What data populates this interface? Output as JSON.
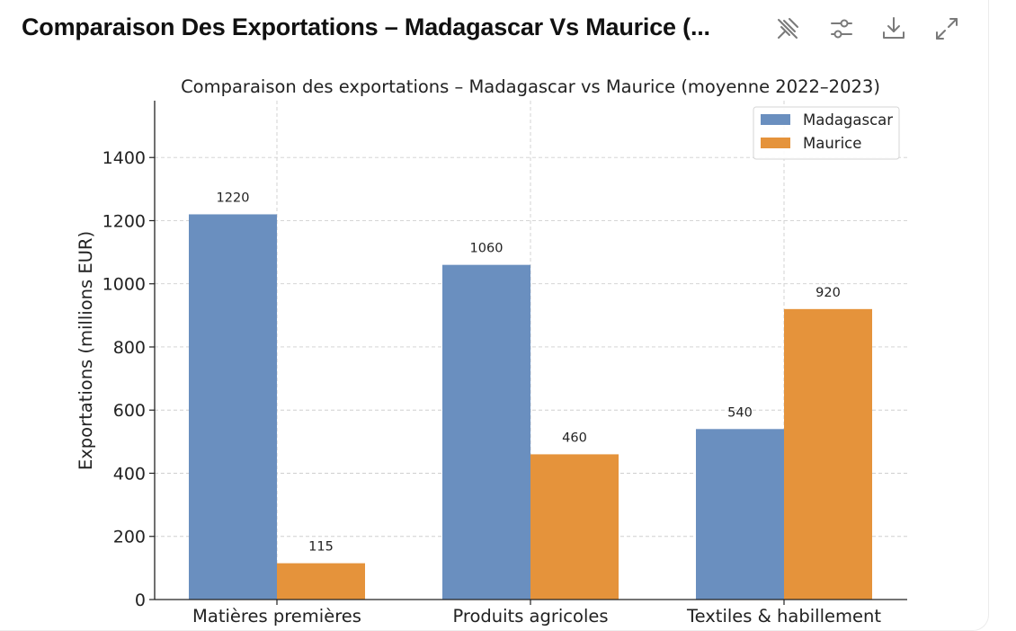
{
  "header": {
    "title": "Comparaison Des Exportations – Madagascar Vs Maurice (...",
    "tools": [
      {
        "icon": "pin-off-icon"
      },
      {
        "icon": "sliders-icon"
      },
      {
        "icon": "download-icon"
      },
      {
        "icon": "expand-icon"
      }
    ]
  },
  "chart_data": {
    "type": "bar",
    "title": "Comparaison des exportations – Madagascar vs Maurice (moyenne 2022–2023)",
    "xlabel": "",
    "ylabel": "Exportations (millions EUR)",
    "categories": [
      "Matières premières",
      "Produits agricoles",
      "Textiles & habillement"
    ],
    "series": [
      {
        "name": "Madagascar",
        "values": [
          1220,
          1060,
          540
        ],
        "color": "#6a8fbf"
      },
      {
        "name": "Maurice",
        "values": [
          115,
          460,
          920
        ],
        "color": "#e5933b"
      }
    ],
    "data_labels": [
      [
        "1220",
        "1060",
        "540"
      ],
      [
        "115",
        "460",
        "920"
      ]
    ],
    "yticks": [
      "0",
      "200",
      "400",
      "600",
      "800",
      "1000",
      "1200",
      "1400"
    ],
    "ylim": [
      0,
      1580
    ],
    "grid": true,
    "legend_position": "top-right"
  }
}
